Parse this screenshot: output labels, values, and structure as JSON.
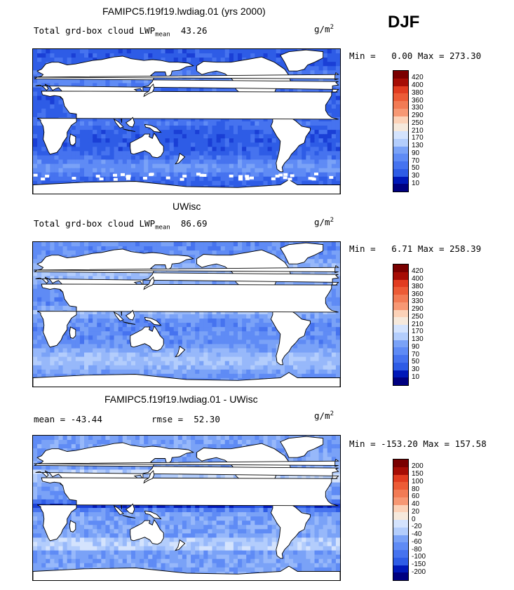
{
  "season": "DJF",
  "colors": {
    "levels_fill": [
      "#000080",
      "#0018b8",
      "#1a3fd6",
      "#2e5ce6",
      "#4673ef",
      "#5f8bf5",
      "#7aa2f7",
      "#97b8fa",
      "#b3cdfc",
      "#d4e3fd",
      "#f6e9dc",
      "#fcd2b8",
      "#fab494",
      "#f79874",
      "#f27b55",
      "#ec5b36",
      "#e13c20",
      "#c91e0d",
      "#a60d05",
      "#7a0000"
    ],
    "diff_fill": [
      "#000080",
      "#0018b8",
      "#1a3fd6",
      "#2e5ce6",
      "#4673ef",
      "#5f8bf5",
      "#7aa2f7",
      "#97b8fa",
      "#b3cdfc",
      "#d4e3fd",
      "#f6e9dc",
      "#fcd2b8",
      "#fab494",
      "#f79874",
      "#f27b55",
      "#ec5b36",
      "#e13c20",
      "#c91e0d",
      "#a60d05",
      "#7a0000"
    ],
    "land": "#ffffff"
  },
  "chart_data": [
    {
      "type": "heatmap",
      "title": "FAMIPC5.f19f19.lwdiag.01 (yrs 2000)",
      "left_label": "Total grd-box cloud LWP",
      "mean_label": "mean",
      "mean_value": "43.26",
      "units_base": "g/m",
      "units_exp": "2",
      "min_label": "Min =",
      "min_value": "0.00",
      "max_label": "Max =",
      "max_value": "273.30",
      "colorbar_levels": [
        "420",
        "400",
        "380",
        "360",
        "330",
        "290",
        "250",
        "210",
        "170",
        "130",
        "90",
        "70",
        "50",
        "30",
        "10"
      ],
      "colorbar_min": 0,
      "colorbar_max": 440
    },
    {
      "type": "heatmap",
      "title": "UWisc",
      "left_label": "Total grd-box cloud LWP",
      "mean_label": "mean",
      "mean_value": "86.69",
      "units_base": "g/m",
      "units_exp": "2",
      "min_label": "Min =",
      "min_value": "6.71",
      "max_label": "Max =",
      "max_value": "258.39",
      "colorbar_levels": [
        "420",
        "400",
        "380",
        "360",
        "330",
        "290",
        "250",
        "210",
        "170",
        "130",
        "90",
        "70",
        "50",
        "30",
        "10"
      ],
      "colorbar_min": 0,
      "colorbar_max": 440
    },
    {
      "type": "heatmap",
      "title": "FAMIPC5.f19f19.lwdiag.01 - UWisc",
      "mean_label": "mean =",
      "mean_value": "-43.44",
      "rmse_label": "rmse =",
      "rmse_value": "52.30",
      "units_base": "g/m",
      "units_exp": "2",
      "min_label": "Min =",
      "min_value": "-153.20",
      "max_label": "Max =",
      "max_value": "157.58",
      "colorbar_levels": [
        "200",
        "150",
        "100",
        "80",
        "60",
        "40",
        "20",
        "0",
        "-20",
        "-40",
        "-60",
        "-80",
        "-100",
        "-150",
        "-200"
      ],
      "colorbar_min": -250,
      "colorbar_max": 250
    }
  ]
}
